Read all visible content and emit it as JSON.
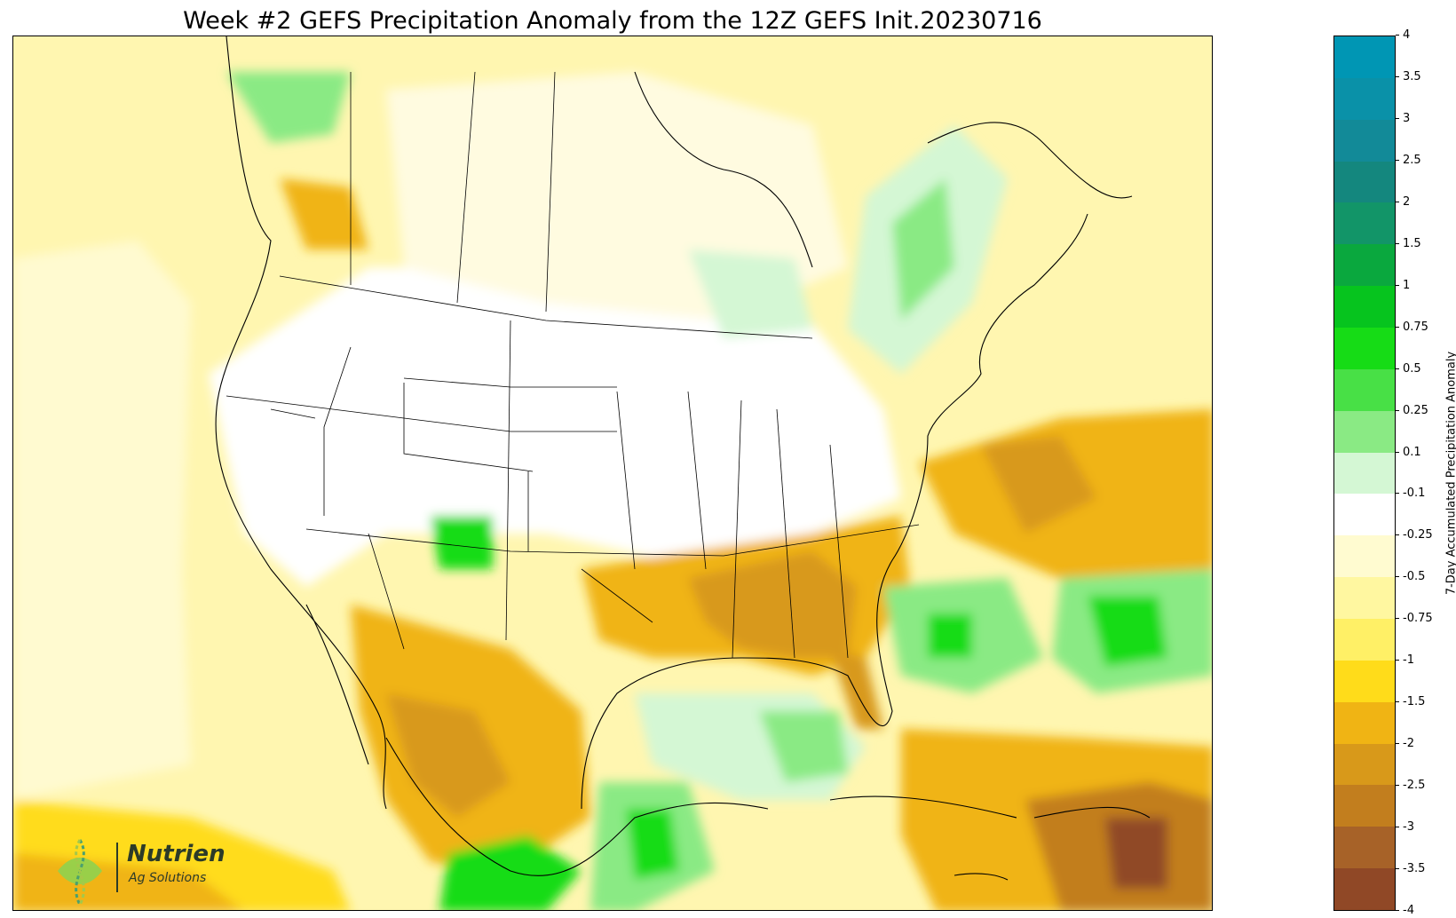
{
  "title": "Week #2 GEFS Precipitation Anomaly from the 12Z GEFS Init.20230716",
  "colorbar": {
    "label": "7-Day Accumulated Precipitation Anomaly",
    "ticks": [
      "4",
      "3.5",
      "3",
      "2.5",
      "2",
      "1.5",
      "1",
      "0.75",
      "0.5",
      "0.25",
      "0.1",
      "-0.1",
      "-0.25",
      "-0.5",
      "-0.75",
      "-1",
      "-1.5",
      "-2",
      "-2.5",
      "-3",
      "-3.5",
      "-4"
    ],
    "colors": [
      "#0096b4",
      "#0a91a8",
      "#128a98",
      "#14877e",
      "#129568",
      "#0aa83e",
      "#06c41e",
      "#16dc16",
      "#48e046",
      "#8aea84",
      "#d4f7d4",
      "#ffffff",
      "#fffbd0",
      "#fff7a0",
      "#fff066",
      "#ffdc1a",
      "#f0b414",
      "#d8991a",
      "#c27e1e",
      "#a76228",
      "#904826",
      "#7f3322"
    ]
  },
  "logo": {
    "name": "Nutrien",
    "sub": "Ag Solutions"
  }
}
